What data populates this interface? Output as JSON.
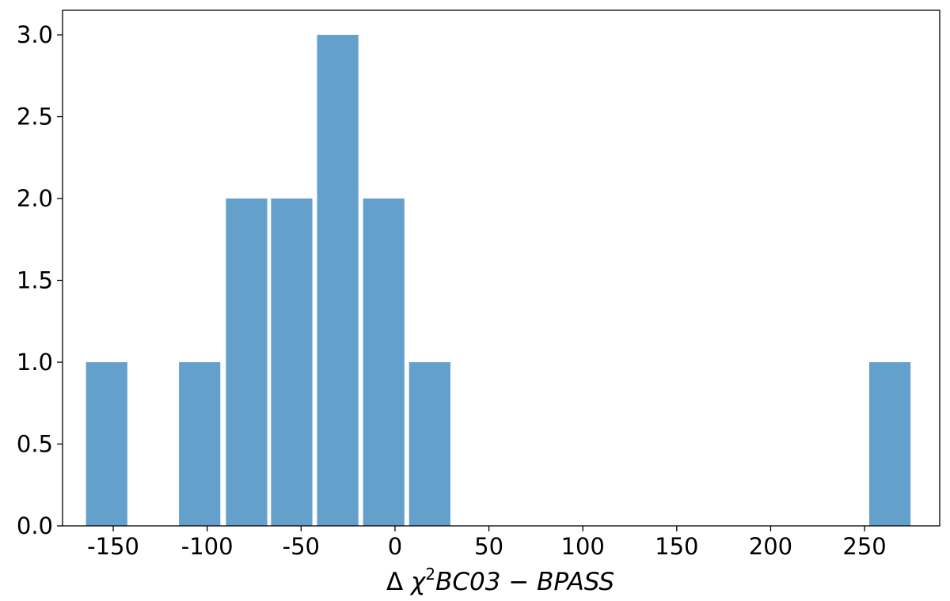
{
  "chart_data": {
    "type": "bar",
    "title": "",
    "xlabel": {
      "prefix": "Δ ",
      "chi": "χ",
      "sup": "2",
      "suffix": "BC03 − BPASS"
    },
    "ylabel": "",
    "xlim": [
      -177,
      290
    ],
    "ylim": [
      0,
      3.15
    ],
    "grid": false,
    "x_ticks": [
      -150,
      -100,
      -50,
      0,
      50,
      100,
      150,
      200,
      250
    ],
    "x_tick_labels": [
      "-150",
      "-100",
      "-50",
      "0",
      "50",
      "100",
      "150",
      "200",
      "250"
    ],
    "y_ticks": [
      0,
      0.5,
      1.0,
      1.5,
      2.0,
      2.5,
      3.0
    ],
    "y_tick_labels": [
      "0.0",
      "0.5",
      "1.0",
      "1.5",
      "2.0",
      "2.5",
      "3.0"
    ],
    "bars": [
      {
        "x0": -164.5,
        "x1": -142.5,
        "value": 1
      },
      {
        "x0": -115.0,
        "x1": -93.0,
        "value": 1
      },
      {
        "x0": -90.0,
        "x1": -68.0,
        "value": 2
      },
      {
        "x0": -66.0,
        "x1": -44.0,
        "value": 2
      },
      {
        "x0": -41.5,
        "x1": -19.5,
        "value": 3
      },
      {
        "x0": -17.0,
        "x1": 5.0,
        "value": 2
      },
      {
        "x0": 7.5,
        "x1": 29.5,
        "value": 1
      },
      {
        "x0": 252.5,
        "x1": 274.5,
        "value": 1
      }
    ],
    "bar_color": "#63a1cc"
  }
}
